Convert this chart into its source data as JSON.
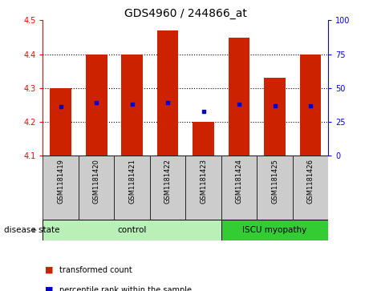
{
  "title": "GDS4960 / 244866_at",
  "samples": [
    "GSM1181419",
    "GSM1181420",
    "GSM1181421",
    "GSM1181422",
    "GSM1181423",
    "GSM1181424",
    "GSM1181425",
    "GSM1181426"
  ],
  "bar_bottoms": [
    4.1,
    4.1,
    4.1,
    4.1,
    4.1,
    4.1,
    4.1,
    4.1
  ],
  "bar_tops": [
    4.3,
    4.4,
    4.4,
    4.47,
    4.2,
    4.45,
    4.33,
    4.4
  ],
  "percentile_values": [
    4.245,
    4.258,
    4.252,
    4.258,
    4.232,
    4.252,
    4.248,
    4.248
  ],
  "ylim": [
    4.1,
    4.5
  ],
  "yticks_left": [
    4.1,
    4.2,
    4.3,
    4.4,
    4.5
  ],
  "yticks_right": [
    0,
    25,
    50,
    75,
    100
  ],
  "bar_color": "#cc2200",
  "percentile_color": "#0000cc",
  "control_indices": [
    0,
    1,
    2,
    3,
    4
  ],
  "iscu_indices": [
    5,
    6,
    7
  ],
  "control_label": "control",
  "iscu_label": "ISCU myopathy",
  "control_bg": "#b8f0b8",
  "iscu_bg": "#33cc33",
  "xticklabel_bg": "#cccccc",
  "disease_state_label": "disease state",
  "legend_red_label": "transformed count",
  "legend_blue_label": "percentile rank within the sample",
  "title_fontsize": 10,
  "tick_fontsize": 7,
  "sample_fontsize": 6,
  "legend_fontsize": 7,
  "disease_fontsize": 7.5
}
